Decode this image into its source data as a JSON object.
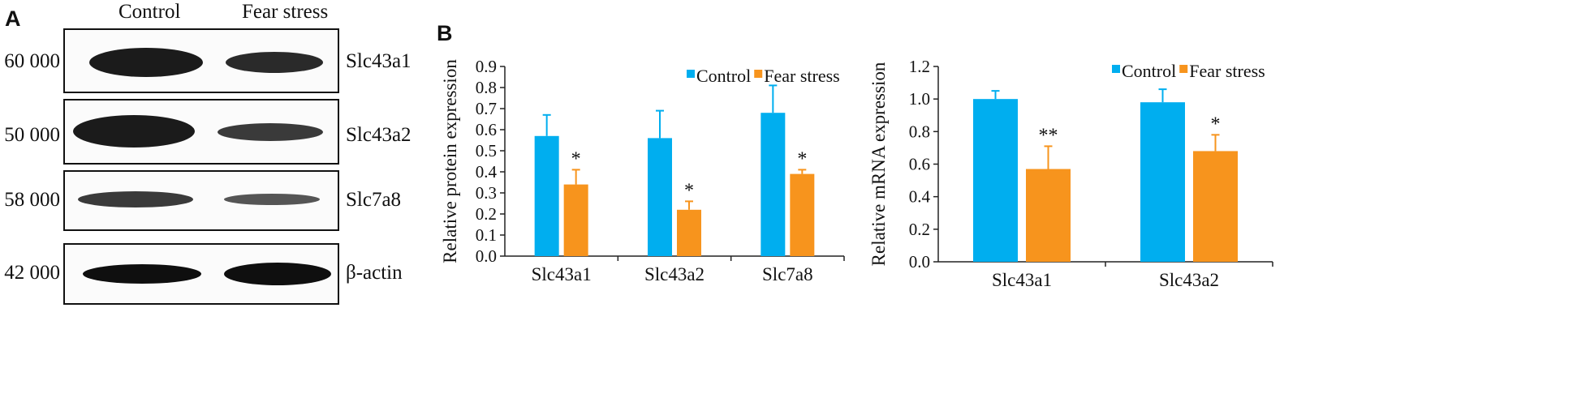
{
  "panel_a": {
    "label": "A",
    "columns": [
      "Control",
      "Fear stress"
    ],
    "blots": [
      {
        "mw": "60 000",
        "protein": "Slc43a1"
      },
      {
        "mw": "50 000",
        "protein": "Slc43a2"
      },
      {
        "mw": "58 000",
        "protein": "Slc7a8"
      },
      {
        "mw": "42 000",
        "protein": "β-actin"
      }
    ]
  },
  "panel_b": {
    "label": "B"
  },
  "colors": {
    "control": "#00AEEF",
    "fear_stress": "#F7941D",
    "axis": "#222222"
  },
  "chart_data": [
    {
      "type": "bar",
      "ylabel": "Relative protein expression",
      "categories": [
        "Slc43a1",
        "Slc43a2",
        "Slc7a8"
      ],
      "ylim": [
        0.0,
        0.9
      ],
      "yticks": [
        "0.0",
        "0.1",
        "0.2",
        "0.3",
        "0.4",
        "0.5",
        "0.6",
        "0.7",
        "0.8",
        "0.9"
      ],
      "series": [
        {
          "name": "Control",
          "values": [
            0.57,
            0.56,
            0.68
          ],
          "errors": [
            0.1,
            0.13,
            0.13
          ]
        },
        {
          "name": "Fear stress",
          "values": [
            0.34,
            0.22,
            0.39
          ],
          "errors": [
            0.07,
            0.04,
            0.02
          ]
        }
      ],
      "significance": [
        "*",
        "*",
        "*"
      ],
      "legend": "top-right"
    },
    {
      "type": "bar",
      "ylabel": "Relative mRNA expression",
      "categories": [
        "Slc43a1",
        "Slc43a2"
      ],
      "ylim": [
        0.0,
        1.2
      ],
      "yticks": [
        "0.0",
        "0.2",
        "0.4",
        "0.6",
        "0.8",
        "1.0",
        "1.2"
      ],
      "series": [
        {
          "name": "Control",
          "values": [
            1.0,
            0.98
          ],
          "errors": [
            0.05,
            0.08
          ]
        },
        {
          "name": "Fear stress",
          "values": [
            0.57,
            0.68
          ],
          "errors": [
            0.14,
            0.1
          ]
        }
      ],
      "significance": [
        "**",
        "*"
      ],
      "legend": "top-right"
    }
  ]
}
